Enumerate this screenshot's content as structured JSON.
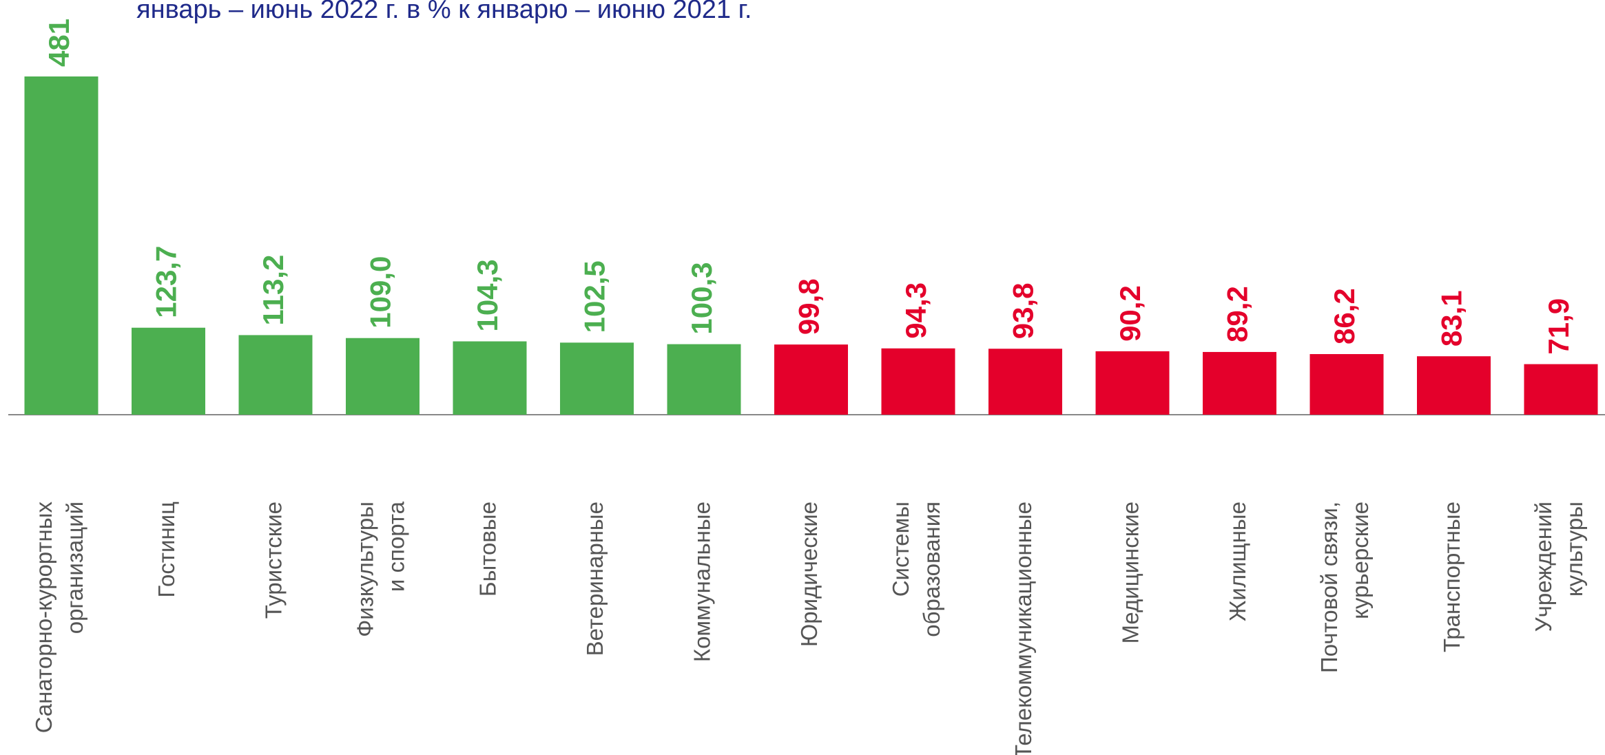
{
  "chart_data": {
    "type": "bar",
    "title": "январь – июнь 2022 г. в % к январю – июню 2021 г.",
    "categories": [
      [
        "Санаторно-курортных",
        "организаций"
      ],
      [
        "Гостиниц"
      ],
      [
        "Туристские"
      ],
      [
        "Физкультуры",
        "и спорта"
      ],
      [
        "Бытовые"
      ],
      [
        "Ветеринарные"
      ],
      [
        "Коммунальные"
      ],
      [
        "Юридические"
      ],
      [
        "Системы",
        "образования"
      ],
      [
        "Телекоммуникационные"
      ],
      [
        "Медицинские"
      ],
      [
        "Жилищные"
      ],
      [
        "Почтовой связи,",
        "курьерские"
      ],
      [
        "Транспортные"
      ],
      [
        "Учреждений",
        "культуры"
      ]
    ],
    "values": [
      481,
      123.7,
      113.2,
      109.0,
      104.3,
      102.5,
      100.3,
      99.8,
      94.3,
      93.8,
      90.2,
      89.2,
      86.2,
      83.1,
      71.9
    ],
    "value_labels": [
      "481",
      "123,7",
      "113,2",
      "109,0",
      "104,3",
      "102,5",
      "100,3",
      "99,8",
      "94,3",
      "93,8",
      "90,2",
      "89,2",
      "86,2",
      "83,1",
      "71,9"
    ],
    "colors": [
      "#4caf50",
      "#4caf50",
      "#4caf50",
      "#4caf50",
      "#4caf50",
      "#4caf50",
      "#4caf50",
      "#e4002b",
      "#e4002b",
      "#e4002b",
      "#e4002b",
      "#e4002b",
      "#e4002b",
      "#e4002b",
      "#e4002b"
    ]
  }
}
